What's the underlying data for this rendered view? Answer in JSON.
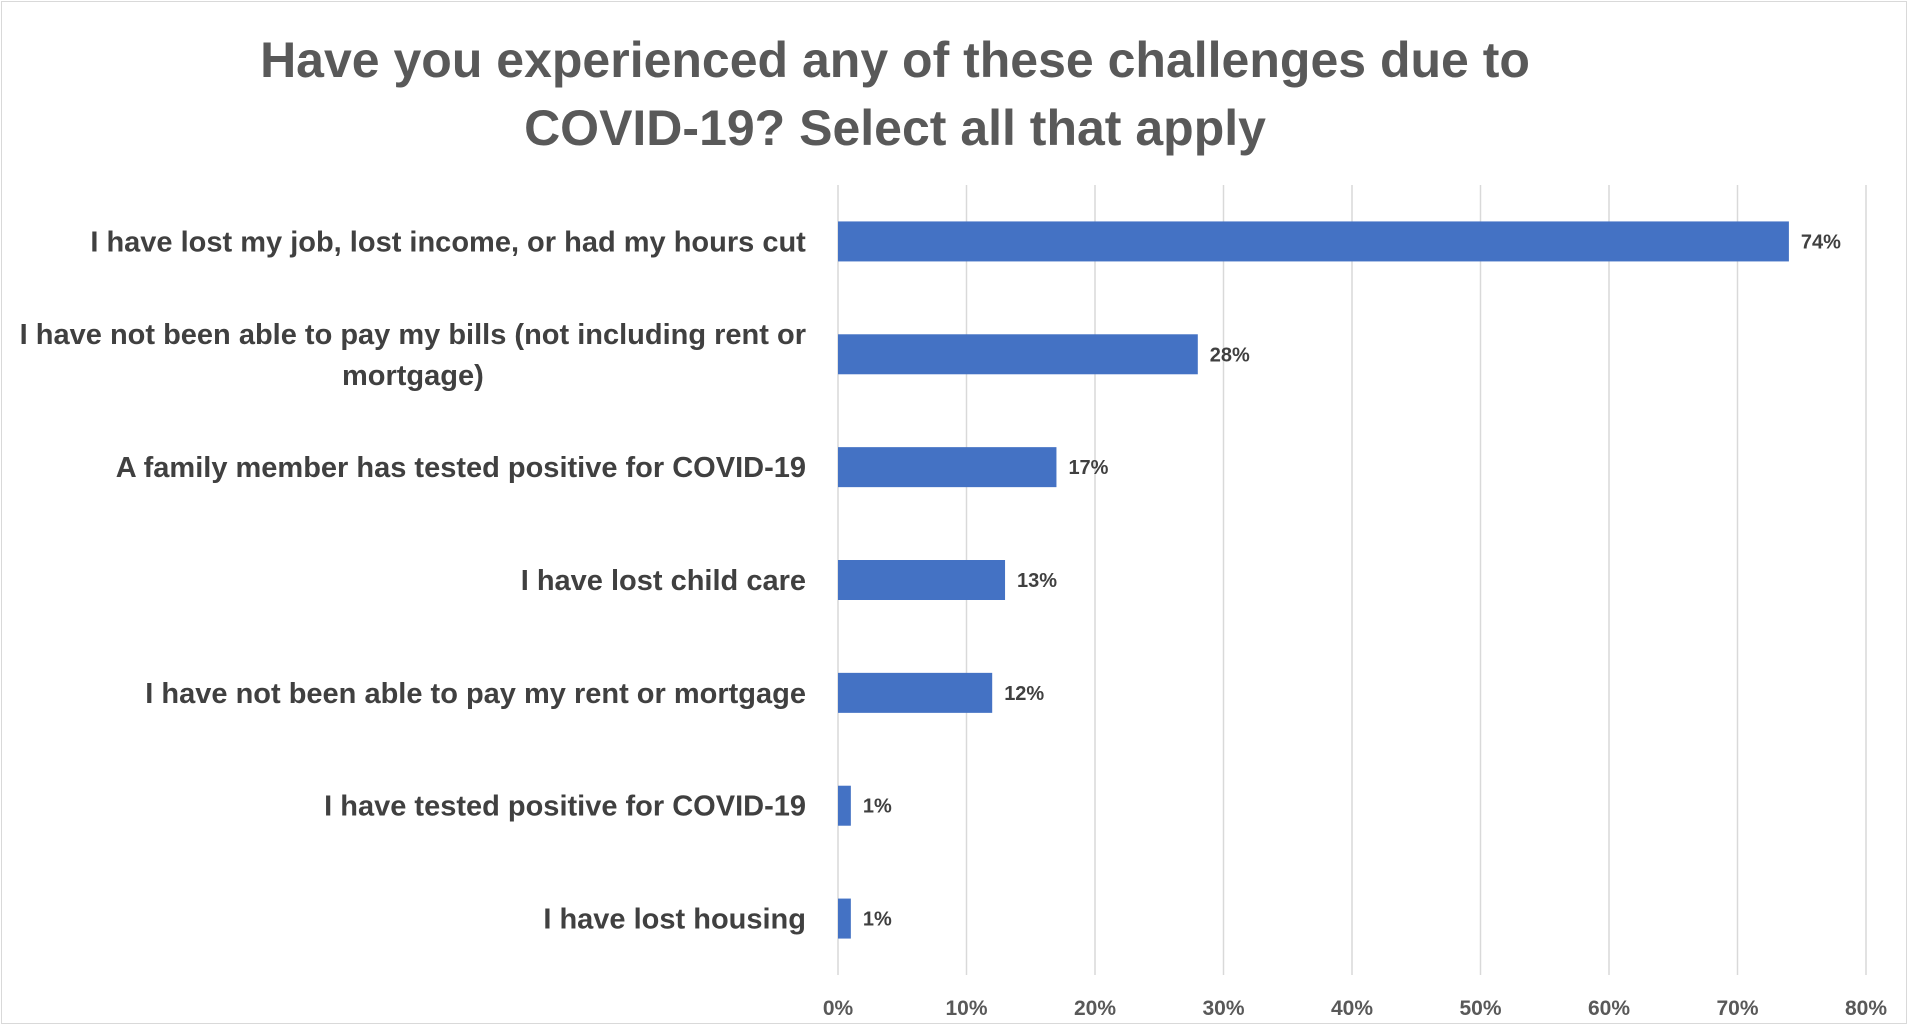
{
  "chart_data": {
    "type": "bar",
    "orientation": "horizontal",
    "title": "Have you experienced any of these challenges due to COVID-19? Select all that apply",
    "categories": [
      "I have lost my job, lost income, or had my hours cut",
      "I have not been able to pay my bills (not including rent or mortgage)",
      "A family member has tested positive for COVID-19",
      "I have lost child care",
      "I have not been able to pay my rent or mortgage",
      "I have tested positive for COVID-19",
      "I have lost housing"
    ],
    "category_lines": [
      [
        "I have lost my job, lost income, or had my hours cut"
      ],
      [
        "I have not been able to pay my bills (not including rent or",
        "mortgage)"
      ],
      [
        "A family member has tested positive for COVID-19"
      ],
      [
        "I have lost child care"
      ],
      [
        "I have not been able to pay my rent or mortgage"
      ],
      [
        "I have tested positive for COVID-19"
      ],
      [
        "I have lost housing"
      ]
    ],
    "values": [
      74,
      28,
      17,
      13,
      12,
      1,
      1
    ],
    "data_labels": [
      "74%",
      "28%",
      "17%",
      "13%",
      "12%",
      "1%",
      "1%"
    ],
    "xlim": [
      0,
      80
    ],
    "xticks": [
      0,
      10,
      20,
      30,
      40,
      50,
      60,
      70,
      80
    ],
    "xtick_labels": [
      "0%",
      "10%",
      "20%",
      "30%",
      "40%",
      "50%",
      "60%",
      "70%",
      "80%"
    ],
    "grid": true,
    "bar_color": "#4472c4",
    "gridline_color": "#d9d9d9"
  }
}
